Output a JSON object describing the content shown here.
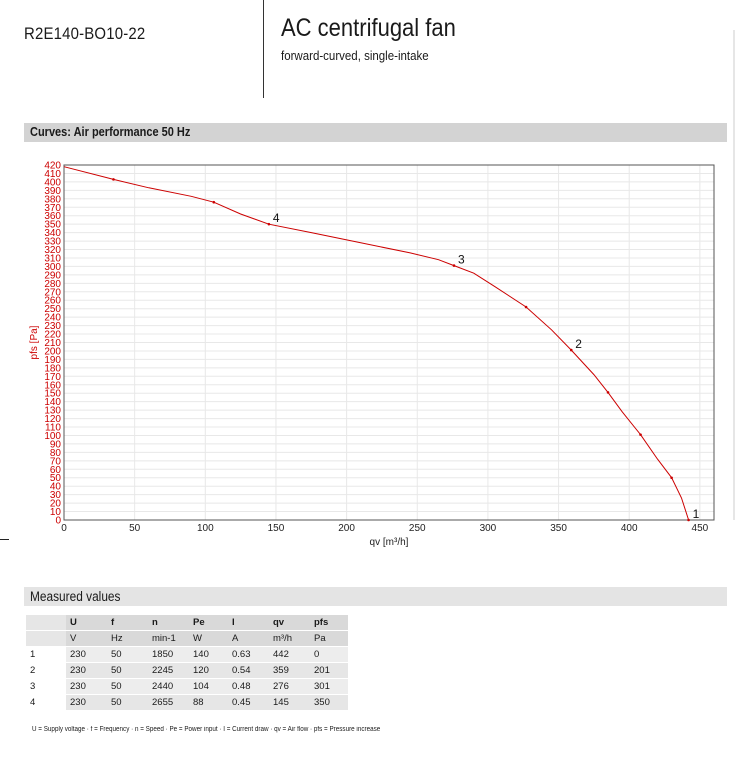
{
  "header": {
    "model": "R2E140-BO10-22",
    "title": "AC centrifugal fan",
    "subtitle": "forward-curved, single-intake"
  },
  "curves_section": {
    "label": "Curves: Air performance 50 Hz"
  },
  "colors": {
    "curve": "#cc0000",
    "axis_text": "#cc0000",
    "grid": "#e8e8e8"
  },
  "chart_data": {
    "type": "line",
    "xlabel": "qv [m³/h]",
    "ylabel": "pfs [Pa]",
    "xlim": [
      0,
      460
    ],
    "ylim": [
      0,
      420
    ],
    "x_ticks": [
      "0",
      "50",
      "100",
      "150",
      "200",
      "250",
      "300",
      "350",
      "400",
      "450"
    ],
    "y_ticks": [
      "0",
      "10",
      "20",
      "30",
      "40",
      "50",
      "60",
      "70",
      "80",
      "90",
      "100",
      "110",
      "120",
      "130",
      "140",
      "150",
      "160",
      "170",
      "180",
      "190",
      "200",
      "210",
      "220",
      "230",
      "240",
      "250",
      "260",
      "270",
      "280",
      "290",
      "300",
      "310",
      "320",
      "330",
      "340",
      "350",
      "360",
      "370",
      "380",
      "390",
      "400",
      "410",
      "420"
    ],
    "grid": true,
    "series": [
      {
        "x": [
          0,
          35,
          60,
          90,
          106,
          125,
          145,
          175,
          210,
          245,
          265,
          276,
          290,
          305,
          327,
          345,
          359,
          375,
          385,
          395,
          408,
          420,
          430,
          437,
          442
        ],
        "y": [
          418,
          403,
          393,
          383,
          376,
          362,
          350,
          340,
          328,
          316,
          308,
          301,
          292,
          276,
          252,
          225,
          201,
          172,
          151,
          128,
          101,
          72,
          50,
          26,
          0
        ]
      }
    ],
    "markers": {
      "x": [
        35,
        106,
        145,
        276,
        327,
        359,
        385,
        408,
        430,
        442
      ],
      "y": [
        403,
        376,
        350,
        301,
        252,
        201,
        151,
        101,
        50,
        0
      ]
    },
    "annotations": [
      {
        "text": "1",
        "x": 442,
        "y": 0
      },
      {
        "text": "2",
        "x": 359,
        "y": 201
      },
      {
        "text": "3",
        "x": 276,
        "y": 301
      },
      {
        "text": "4",
        "x": 145,
        "y": 350
      }
    ]
  },
  "measured": {
    "label": "Measured values",
    "header_row1": [
      "U",
      "f",
      "n",
      "Pe",
      "I",
      "qv",
      "pfs"
    ],
    "header_row2": [
      "V",
      "Hz",
      "min-1",
      "W",
      "A",
      "m³/h",
      "Pa"
    ],
    "rows": [
      {
        "idx": "1",
        "cells": [
          "230",
          "50",
          "1850",
          "140",
          "0.63",
          "442",
          "0"
        ]
      },
      {
        "idx": "2",
        "cells": [
          "230",
          "50",
          "2245",
          "120",
          "0.54",
          "359",
          "201"
        ]
      },
      {
        "idx": "3",
        "cells": [
          "230",
          "50",
          "2440",
          "104",
          "0.48",
          "276",
          "301"
        ]
      },
      {
        "idx": "4",
        "cells": [
          "230",
          "50",
          "2655",
          "88",
          "0.45",
          "145",
          "350"
        ]
      }
    ],
    "footnote": "U = Supply voltage · f = Frequency · n = Speed · Pe = Power input · I = Current draw · qv = Air flow · pfs = Pressure increase"
  }
}
